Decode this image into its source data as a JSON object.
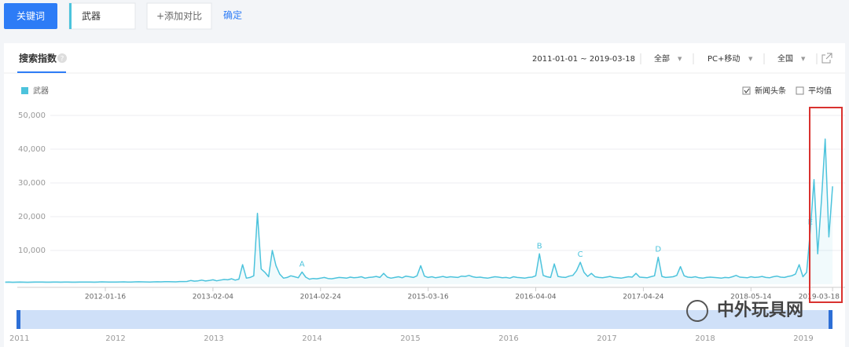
{
  "toolbar": {
    "keyword_button": "关键词",
    "search_term": "武器",
    "add_compare": "+添加对比",
    "confirm": "确定"
  },
  "panel": {
    "tab": "搜索指数",
    "help": "?",
    "date_range": "2011-01-01 ~ 2019-03-18",
    "filters": [
      "全部",
      "PC+移动",
      "全国"
    ],
    "checkboxes": [
      {
        "label": "新闻头条",
        "checked": true
      },
      {
        "label": "平均值",
        "checked": false
      }
    ]
  },
  "chart_data": {
    "type": "line",
    "series": [
      {
        "name": "武器",
        "color": "#4cc3dc",
        "values": [
          600,
          620,
          580,
          600,
          640,
          610,
          590,
          600,
          620,
          650,
          630,
          600,
          610,
          640,
          620,
          600,
          650,
          630,
          610,
          600,
          620,
          640,
          660,
          630,
          610,
          650,
          700,
          680,
          640,
          660,
          650,
          680,
          700,
          660,
          640,
          690,
          720,
          700,
          680,
          650,
          700,
          720,
          690,
          740,
          760,
          720,
          700,
          780,
          800,
          820,
          1100,
          900,
          1000,
          1200,
          950,
          1100,
          1300,
          1000,
          1200,
          1400,
          1300,
          1600,
          1200,
          1500,
          5800,
          1800,
          2000,
          2500,
          21000,
          4500,
          3500,
          2200,
          10000,
          5500,
          3000,
          1800,
          2000,
          2500,
          2200,
          1900,
          3600,
          2100,
          1500,
          1700,
          1600,
          1800,
          2000,
          1700,
          1600,
          1800,
          2000,
          1900,
          1800,
          2100,
          1900,
          2000,
          2200,
          1800,
          2000,
          2100,
          2300,
          2000,
          3200,
          2100,
          1800,
          2000,
          2200,
          1900,
          2400,
          2200,
          2000,
          2500,
          5500,
          2400,
          2000,
          2200,
          1900,
          2100,
          2300,
          2000,
          2200,
          2100,
          2000,
          2400,
          2300,
          2600,
          2200,
          2000,
          2100,
          1900,
          1800,
          2000,
          2200,
          2100,
          1900,
          2000,
          1800,
          2200,
          2000,
          1900,
          1800,
          2000,
          2100,
          2500,
          9000,
          2600,
          2200,
          2000,
          6000,
          2300,
          2100,
          2000,
          2400,
          2600,
          4000,
          6500,
          3500,
          2300,
          3200,
          2200,
          2000,
          1900,
          2100,
          2300,
          2000,
          1900,
          1800,
          2000,
          2200,
          2100,
          3200,
          2100,
          2000,
          1900,
          2200,
          2500,
          8000,
          2300,
          2000,
          2100,
          2200,
          2600,
          5200,
          2500,
          2100,
          2000,
          2200,
          1900,
          1800,
          2000,
          2100,
          2000,
          1900,
          1800,
          2000,
          1900,
          2200,
          2600,
          2100,
          2000,
          1900,
          2200,
          2000,
          2100,
          2300,
          2000,
          1900,
          2200,
          2400,
          2100,
          2000,
          2300,
          2500,
          3000,
          5800,
          2200,
          3500,
          16000,
          31000,
          9000,
          25000,
          43000,
          14000,
          29000
        ]
      }
    ],
    "categories": [
      null,
      null,
      null,
      null,
      null,
      null,
      null,
      null,
      null,
      null,
      null,
      null,
      null,
      null,
      null,
      null,
      null,
      null,
      null,
      null,
      null,
      null,
      null,
      null,
      null,
      null,
      null,
      "2012-01-16",
      null,
      null,
      null,
      null,
      null,
      null,
      null,
      null,
      null,
      null,
      null,
      null,
      null,
      null,
      null,
      null,
      null,
      null,
      null,
      null,
      null,
      null,
      null,
      null,
      null,
      null,
      null,
      null,
      "2013-02-04",
      null,
      null,
      null,
      null,
      null,
      null,
      null,
      null,
      null,
      null,
      null,
      null,
      null,
      null,
      null,
      null,
      null,
      null,
      null,
      null,
      null,
      null,
      null,
      null,
      null,
      null,
      null,
      null,
      "2014-02-24",
      null,
      null,
      null,
      null,
      null,
      null,
      null,
      null,
      null,
      null,
      null,
      null,
      null,
      null,
      null,
      null,
      null,
      null,
      null,
      null,
      null,
      null,
      null,
      null,
      null,
      null,
      null,
      null,
      "2015-03-16",
      null,
      null,
      null,
      null,
      null,
      null,
      null,
      null,
      null,
      null,
      null,
      null,
      null,
      null,
      null,
      null,
      null,
      null,
      null,
      null,
      null,
      null,
      null,
      null,
      null,
      null,
      null,
      null,
      "2016-04-04",
      null,
      null,
      null,
      null,
      null,
      null,
      null,
      null,
      null,
      null,
      null,
      null,
      null,
      null,
      null,
      null,
      null,
      null,
      null,
      null,
      null,
      null,
      null,
      null,
      null,
      null,
      null,
      null,
      "2017-04-24",
      null,
      null,
      null,
      null,
      null,
      null,
      null,
      null,
      null,
      null,
      null,
      null,
      null,
      null,
      null,
      null,
      null,
      null,
      null,
      null,
      null,
      null,
      null,
      null,
      null,
      null,
      null,
      null,
      "2018-05-14",
      null,
      null,
      null,
      null,
      null,
      null,
      null,
      null,
      null,
      null,
      null,
      null,
      null,
      null,
      null,
      null,
      null,
      null,
      null,
      null,
      null,
      "2019-03-18"
    ],
    "ylim": [
      0,
      50000
    ],
    "yticks": [
      {
        "value": 10000,
        "label": "10,000"
      },
      {
        "value": 20000,
        "label": "20,000"
      },
      {
        "value": 30000,
        "label": "30,000"
      },
      {
        "value": 40000,
        "label": "40,000"
      },
      {
        "value": 50000,
        "label": "50,000"
      }
    ],
    "grid": true,
    "annotations": [
      {
        "text": "A",
        "at": 80
      },
      {
        "text": "B",
        "at": 144
      },
      {
        "text": "C",
        "at": 155
      },
      {
        "text": "D",
        "at": 176
      },
      {
        "text": "E",
        "at": 217
      }
    ]
  },
  "navigator": {
    "years": [
      "2011",
      "2012",
      "2013",
      "2014",
      "2015",
      "2016",
      "2017",
      "2018",
      "2019"
    ]
  },
  "watermark": "中外玩具网"
}
